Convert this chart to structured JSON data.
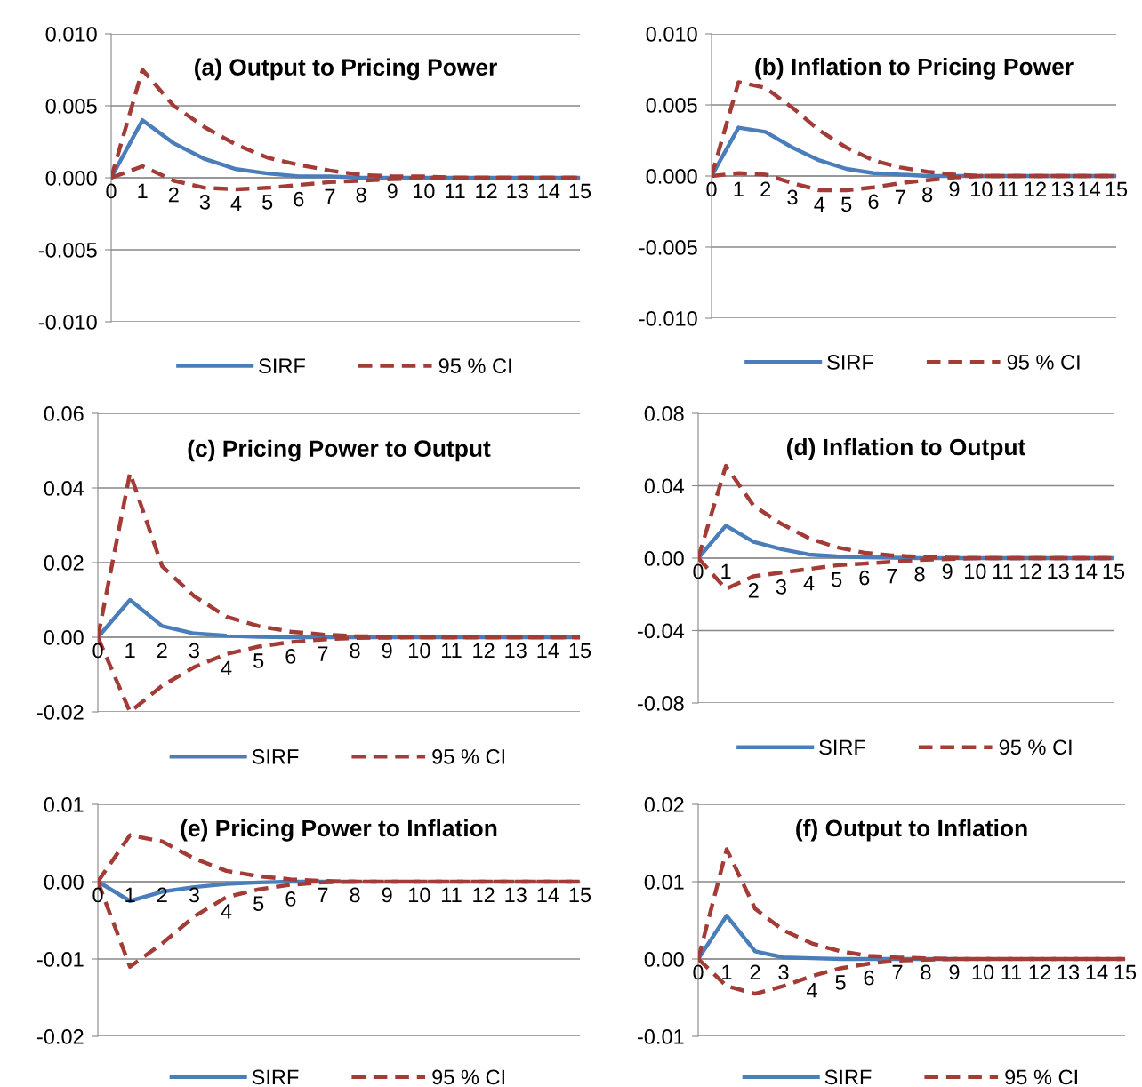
{
  "chart_data": [
    {
      "type": "line",
      "title": "(a) Output to Pricing Power",
      "categories": [
        "0",
        "1",
        "2",
        "3",
        "4",
        "5",
        "6",
        "7",
        "8",
        "9",
        "10",
        "11",
        "12",
        "13",
        "14",
        "15"
      ],
      "ylim": [
        -0.01,
        0.01
      ],
      "yticks": [
        {
          "value": -0.01,
          "label": "-0.010"
        },
        {
          "value": -0.005,
          "label": "-0.005"
        },
        {
          "value": 0,
          "label": "0.000"
        },
        {
          "value": 0.005,
          "label": "0.005"
        },
        {
          "value": 0.01,
          "label": "0.010"
        }
      ],
      "grid": "y",
      "legend": "bottom",
      "marker": "none",
      "series": [
        {
          "name": "SIRF",
          "color": "#4a7ebb",
          "line_style": "solid",
          "values": [
            0,
            0.004,
            0.0024,
            0.0013,
            0.0006,
            0.0003,
            0.0001,
            0.0001,
            0,
            0,
            0,
            0,
            0,
            0,
            0,
            0
          ]
        },
        {
          "name": "95 % CI",
          "color": "#a33b36",
          "line_style": "dashed",
          "values": [
            0,
            0.0075,
            0.005,
            0.0035,
            0.0023,
            0.0014,
            0.0009,
            0.0005,
            0.0002,
            0.0001,
            0.0001,
            0,
            0,
            0,
            0,
            0
          ]
        },
        {
          "color": "#a33b36",
          "line_style": "dashed",
          "values": [
            0,
            0.0008,
            -0.0002,
            -0.0007,
            -0.0008,
            -0.0007,
            -0.0005,
            -0.0003,
            -0.0002,
            -0.0001,
            0,
            0,
            0,
            0,
            0,
            0
          ]
        }
      ]
    },
    {
      "type": "line",
      "title": "(b) Inflation to Pricing Power",
      "categories": [
        "0",
        "1",
        "2",
        "3",
        "4",
        "5",
        "6",
        "7",
        "8",
        "9",
        "10",
        "11",
        "12",
        "13",
        "14",
        "15"
      ],
      "ylim": [
        -0.01,
        0.01
      ],
      "yticks": [
        {
          "value": -0.01,
          "label": "-0.010"
        },
        {
          "value": -0.005,
          "label": "-0.005"
        },
        {
          "value": 0,
          "label": "0.000"
        },
        {
          "value": 0.005,
          "label": "0.005"
        },
        {
          "value": 0.01,
          "label": "0.010"
        }
      ],
      "grid": "y",
      "legend": "bottom",
      "marker": "none",
      "series": [
        {
          "name": "SIRF",
          "color": "#4a7ebb",
          "line_style": "solid",
          "values": [
            0,
            0.0034,
            0.0031,
            0.002,
            0.0011,
            0.0005,
            0.0002,
            0.0001,
            0,
            0,
            0,
            0,
            0,
            0,
            0,
            0
          ]
        },
        {
          "name": "95 % CI",
          "color": "#a33b36",
          "line_style": "dashed",
          "values": [
            0,
            0.0066,
            0.0062,
            0.0048,
            0.0032,
            0.002,
            0.0011,
            0.0006,
            0.0003,
            0.0001,
            0,
            0,
            0,
            0,
            0,
            0
          ]
        },
        {
          "color": "#a33b36",
          "line_style": "dashed",
          "values": [
            0,
            0.0002,
            0.0001,
            -0.0005,
            -0.001,
            -0.001,
            -0.0008,
            -0.0005,
            -0.0003,
            -0.0001,
            0,
            0,
            0,
            0,
            0,
            0
          ]
        }
      ]
    },
    {
      "type": "line",
      "title": "(c) Pricing Power to Output",
      "categories": [
        "0",
        "1",
        "2",
        "3",
        "4",
        "5",
        "6",
        "7",
        "8",
        "9",
        "10",
        "11",
        "12",
        "13",
        "14",
        "15"
      ],
      "ylim": [
        -0.02,
        0.06
      ],
      "yticks": [
        {
          "value": -0.02,
          "label": "-0.02"
        },
        {
          "value": 0,
          "label": "0.00"
        },
        {
          "value": 0.02,
          "label": "0.02"
        },
        {
          "value": 0.04,
          "label": "0.04"
        },
        {
          "value": 0.06,
          "label": "0.06"
        }
      ],
      "grid": "y",
      "legend": "bottom",
      "marker": "none",
      "series": [
        {
          "name": "SIRF",
          "color": "#4a7ebb",
          "line_style": "solid",
          "values": [
            0,
            0.01,
            0.003,
            0.001,
            0.0004,
            0.0001,
            0,
            0,
            0,
            0,
            0,
            0,
            0,
            0,
            0,
            0
          ]
        },
        {
          "name": "95 % CI",
          "color": "#a33b36",
          "line_style": "dashed",
          "values": [
            0,
            0.044,
            0.019,
            0.011,
            0.0055,
            0.003,
            0.0015,
            0.0007,
            0.0003,
            0.0001,
            0,
            0,
            0,
            0,
            0,
            0
          ]
        },
        {
          "color": "#a33b36",
          "line_style": "dashed",
          "values": [
            0,
            -0.02,
            -0.013,
            -0.008,
            -0.0045,
            -0.0025,
            -0.0013,
            -0.0006,
            -0.0002,
            -0.0001,
            0,
            0,
            0,
            0,
            0,
            0
          ]
        }
      ]
    },
    {
      "type": "line",
      "title": "(d) Inflation to Output",
      "categories": [
        "0",
        "1",
        "2",
        "3",
        "4",
        "5",
        "6",
        "7",
        "8",
        "9",
        "10",
        "11",
        "12",
        "13",
        "14",
        "15"
      ],
      "ylim": [
        -0.08,
        0.08
      ],
      "yticks": [
        {
          "value": -0.08,
          "label": "-0.08"
        },
        {
          "value": -0.04,
          "label": "-0.04"
        },
        {
          "value": 0,
          "label": "0.00"
        },
        {
          "value": 0.04,
          "label": "0.04"
        },
        {
          "value": 0.08,
          "label": "0.08"
        }
      ],
      "grid": "y",
      "legend": "bottom",
      "marker": "none",
      "series": [
        {
          "name": "SIRF",
          "color": "#4a7ebb",
          "line_style": "solid",
          "values": [
            0,
            0.018,
            0.009,
            0.005,
            0.002,
            0.001,
            0.0005,
            0.0002,
            0,
            0,
            0,
            0,
            0,
            0,
            0,
            0
          ]
        },
        {
          "name": "95 % CI",
          "color": "#a33b36",
          "line_style": "dashed",
          "values": [
            0,
            0.051,
            0.029,
            0.019,
            0.011,
            0.006,
            0.003,
            0.0015,
            0.0007,
            0.0003,
            0,
            0,
            0,
            0,
            0,
            0
          ]
        },
        {
          "color": "#a33b36",
          "line_style": "dashed",
          "values": [
            0,
            -0.017,
            -0.01,
            -0.008,
            -0.006,
            -0.004,
            -0.003,
            -0.002,
            -0.001,
            -0.0005,
            0,
            0,
            0,
            0,
            0,
            0
          ]
        }
      ]
    },
    {
      "type": "line",
      "title": "(e) Pricing Power to Inflation",
      "categories": [
        "0",
        "1",
        "2",
        "3",
        "4",
        "5",
        "6",
        "7",
        "8",
        "9",
        "10",
        "11",
        "12",
        "13",
        "14",
        "15"
      ],
      "ylim": [
        -0.02,
        0.01
      ],
      "yticks": [
        {
          "value": -0.02,
          "label": "-0.02"
        },
        {
          "value": -0.01,
          "label": "-0.01"
        },
        {
          "value": 0,
          "label": "0.00"
        },
        {
          "value": 0.01,
          "label": "0.01"
        }
      ],
      "grid": "y",
      "legend": "bottom",
      "marker": "none",
      "series": [
        {
          "name": "SIRF",
          "color": "#4a7ebb",
          "line_style": "solid",
          "values": [
            0,
            -0.0025,
            -0.0013,
            -0.0007,
            -0.0003,
            -0.0001,
            0,
            0,
            0,
            null,
            null,
            null,
            null,
            null,
            null,
            null
          ]
        },
        {
          "name": "95 % CI",
          "color": "#a33b36",
          "line_style": "dashed",
          "values": [
            0,
            0.006,
            0.0052,
            0.003,
            0.0014,
            0.0007,
            0.0003,
            0.0001,
            0,
            0,
            0,
            0,
            0,
            0,
            0,
            0
          ]
        },
        {
          "color": "#a33b36",
          "line_style": "dashed",
          "values": [
            0,
            -0.011,
            -0.008,
            -0.0045,
            -0.002,
            -0.001,
            -0.0004,
            -0.0001,
            0,
            0,
            0,
            0,
            0,
            0,
            0,
            0
          ]
        }
      ]
    },
    {
      "type": "line",
      "title": "(f) Output to Inflation",
      "categories": [
        "0",
        "1",
        "2",
        "3",
        "4",
        "5",
        "6",
        "7",
        "8",
        "9",
        "10",
        "11",
        "12",
        "13",
        "14",
        "15"
      ],
      "ylim": [
        -0.01,
        0.02
      ],
      "yticks": [
        {
          "value": -0.01,
          "label": "-0.01"
        },
        {
          "value": 0,
          "label": "0.00"
        },
        {
          "value": 0.01,
          "label": "0.01"
        },
        {
          "value": 0.02,
          "label": "0.02"
        }
      ],
      "grid": "y",
      "legend": "bottom",
      "marker": "none",
      "series": [
        {
          "name": "SIRF",
          "color": "#4a7ebb",
          "line_style": "solid",
          "values": [
            0,
            0.0056,
            0.001,
            0.0002,
            0.0001,
            0,
            0,
            0,
            0,
            0,
            null,
            null,
            null,
            null,
            null,
            null
          ]
        },
        {
          "name": "95 % CI",
          "color": "#a33b36",
          "line_style": "dashed",
          "values": [
            0,
            0.0142,
            0.0065,
            0.0037,
            0.002,
            0.001,
            0.0004,
            0.0002,
            0.0001,
            0,
            0,
            0,
            0,
            0,
            0,
            0
          ]
        },
        {
          "color": "#a33b36",
          "line_style": "dashed",
          "values": [
            0,
            -0.0035,
            -0.0045,
            -0.0035,
            -0.0022,
            -0.0012,
            -0.0006,
            -0.0002,
            -0.0001,
            0,
            0,
            0,
            0,
            0,
            0,
            0
          ]
        }
      ]
    }
  ]
}
